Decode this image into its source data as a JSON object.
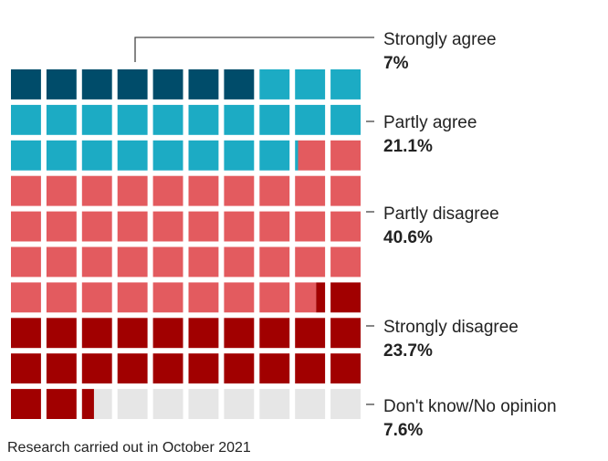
{
  "chart_data": {
    "type": "waffle",
    "total_squares": 100,
    "categories": [
      {
        "label": "Strongly agree",
        "value": 7,
        "value_label": "7%",
        "color": "#004c6a"
      },
      {
        "label": "Partly agree",
        "value": 21.1,
        "value_label": "21.1%",
        "color": "#1cabc4"
      },
      {
        "label": "Partly disagree",
        "value": 40.6,
        "value_label": "40.6%",
        "color": "#e35b5f"
      },
      {
        "label": "Strongly disagree",
        "value": 23.7,
        "value_label": "23.7%",
        "color": "#a10000"
      },
      {
        "label": "Don't know/No opinion",
        "value": 7.6,
        "value_label": "7.6%",
        "color": "#e6e6e6"
      }
    ]
  },
  "footnote": "Research carried out in October 2021"
}
